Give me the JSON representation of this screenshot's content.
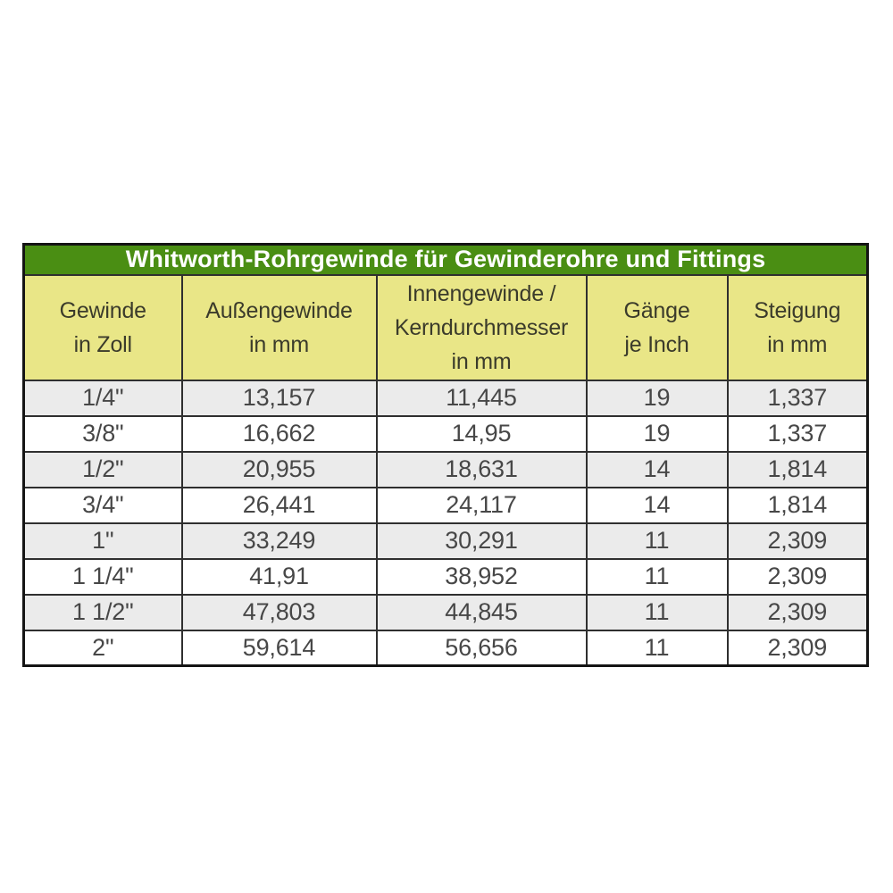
{
  "table": {
    "title": "Whitworth-Rohrgewinde für Gewinderohre und Fittings",
    "columns": [
      {
        "label": "Gewinde\nin Zoll"
      },
      {
        "label": "Außengewinde\nin mm"
      },
      {
        "label": "Innengewinde /\nKerndurchmesser\nin mm"
      },
      {
        "label": "Gänge\nje Inch"
      },
      {
        "label": "Steigung\nin mm"
      }
    ],
    "rows": [
      [
        "1/4\"",
        "13,157",
        "11,445",
        "19",
        "1,337"
      ],
      [
        "3/8\"",
        "16,662",
        "14,95",
        "19",
        "1,337"
      ],
      [
        "1/2\"",
        "20,955",
        "18,631",
        "14",
        "1,814"
      ],
      [
        "3/4\"",
        "26,441",
        "24,117",
        "14",
        "1,814"
      ],
      [
        "1\"",
        "33,249",
        "30,291",
        "11",
        "2,309"
      ],
      [
        "1 1/4\"",
        "41,91",
        "38,952",
        "11",
        "2,309"
      ],
      [
        "1 1/2\"",
        "47,803",
        "44,845",
        "11",
        "2,309"
      ],
      [
        "2\"",
        "59,614",
        "56,656",
        "11",
        "2,309"
      ]
    ]
  },
  "colors": {
    "title_bg": "#4a8e13",
    "title_text": "#ffffff",
    "header_bg": "#e9e687",
    "header_text": "#3b3b2b",
    "row_gray": "#ebebeb",
    "row_white": "#ffffff",
    "data_text": "#474747",
    "border_inner": "#2f2f2f",
    "border_outer": "#141414",
    "page_bg": "#ffffff"
  }
}
